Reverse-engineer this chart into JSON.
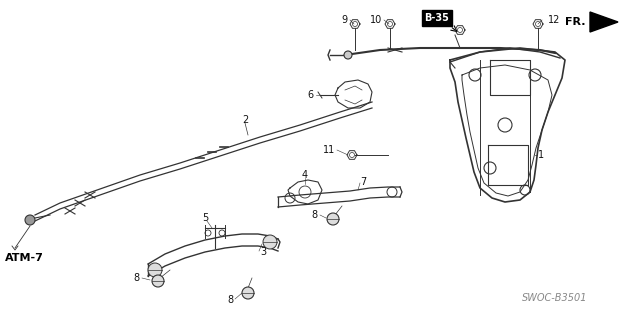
{
  "bg_color": "#ffffff",
  "line_color": "#333333",
  "label_color": "#111111",
  "fig_width": 6.4,
  "fig_height": 3.19,
  "dpi": 100,
  "watermark": "SWOC-B3501",
  "atm_label": "ATM-7",
  "b35_label": "B-35",
  "fr_label": "FR."
}
